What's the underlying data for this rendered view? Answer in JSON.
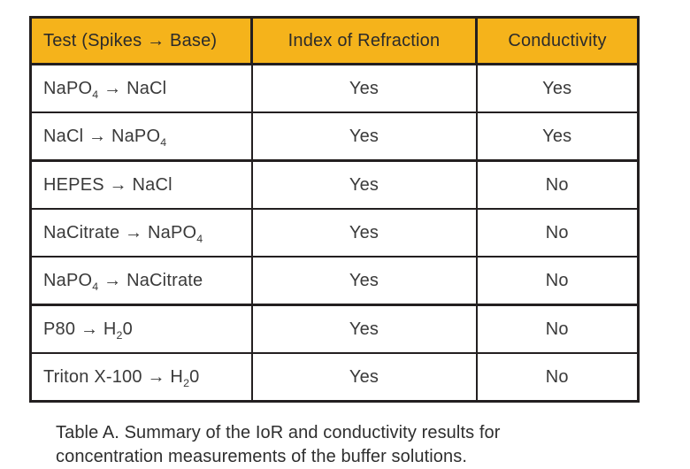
{
  "table": {
    "accent_color": "#F5B31B",
    "border_color": "#231F20",
    "headers": {
      "test": "Test (Spikes → Base)",
      "ior": "Index of Refraction",
      "conductivity": "Conductivity"
    },
    "rows": [
      {
        "test": "NaPO{4} → NaCl",
        "ior": "Yes",
        "conductivity": "Yes"
      },
      {
        "test": "NaCl → NaPO{4}",
        "ior": "Yes",
        "conductivity": "Yes"
      },
      {
        "test": "HEPES → NaCl",
        "ior": "Yes",
        "conductivity": "No"
      },
      {
        "test": "NaCitrate → NaPO{4}",
        "ior": "Yes",
        "conductivity": "No"
      },
      {
        "test": "NaPO{4} → NaCitrate",
        "ior": "Yes",
        "conductivity": "No"
      },
      {
        "test": "P80 → H{2}0",
        "ior": "Yes",
        "conductivity": "No"
      },
      {
        "test": "Triton X-100 → H{2}0",
        "ior": "Yes",
        "conductivity": "No"
      }
    ]
  },
  "caption": {
    "text": "Table A. Summary of the IoR and conductivity results for concentration measurements of the buffer solutions."
  }
}
